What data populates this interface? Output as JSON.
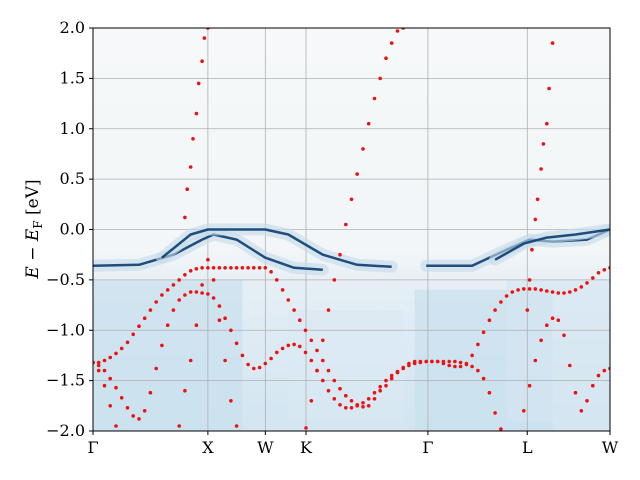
{
  "chart_data": {
    "type": "scatter",
    "title": "",
    "ylabel": {
      "main": "E − E",
      "sub": "F",
      "unit": " [eV]"
    },
    "xlabel": "",
    "ylim": [
      -2.0,
      2.0
    ],
    "yticks": [
      "2.0",
      "1.5",
      "1.0",
      "0.5",
      "0.0",
      "−0.5",
      "−1.0",
      "−1.5",
      "−2.0"
    ],
    "ytick_values": [
      2.0,
      1.5,
      1.0,
      0.5,
      0.0,
      -0.5,
      -1.0,
      -1.5,
      -2.0
    ],
    "kpath_labels": [
      "Γ",
      "X",
      "W",
      "K",
      "Γ",
      "L",
      "W"
    ],
    "kpath_positions": [
      0.0,
      1.0,
      1.5,
      1.854,
      2.915,
      3.78,
      4.5
    ],
    "grid": true,
    "heatmap_colormap": "Blues",
    "background_color": "#f4f7f8",
    "point_color": "#ee1111",
    "band_color": "#0b3d70",
    "series": [
      {
        "x": [
          0.0,
          0.05,
          0.1,
          0.15,
          0.2,
          0.25,
          0.3,
          0.35,
          0.4,
          0.45,
          0.5,
          0.55,
          0.6,
          0.65,
          0.7,
          0.75,
          0.8,
          0.85,
          0.9,
          0.95,
          1.0,
          1.05,
          1.1,
          1.15,
          1.2,
          1.25,
          1.3,
          1.35,
          1.4,
          1.45,
          1.5,
          1.55,
          1.6,
          1.65,
          1.7,
          1.75,
          1.8,
          1.85,
          1.9,
          1.95,
          2.0,
          2.05,
          2.1,
          2.15,
          2.2,
          2.25,
          2.3,
          2.35,
          2.4,
          2.45,
          2.5,
          2.55,
          2.6,
          2.65,
          2.7,
          2.75,
          2.8,
          2.85,
          2.9,
          2.95,
          3.0,
          3.05,
          3.1,
          3.15,
          3.2,
          3.25,
          3.3,
          3.35,
          3.4,
          3.45,
          3.5,
          3.55,
          3.6,
          3.65,
          3.7,
          3.75,
          3.8,
          3.85,
          3.9,
          3.95,
          4.0,
          4.05,
          4.1,
          4.15,
          4.2,
          4.25,
          4.3,
          4.35,
          4.4,
          4.45,
          4.5
        ],
        "y": [
          -1.32,
          -1.32,
          -1.3,
          -1.27,
          -1.23,
          -1.18,
          -1.12,
          -1.04,
          -0.96,
          -0.88,
          -0.8,
          -0.72,
          -0.65,
          -0.6,
          -0.55,
          -0.5,
          -0.45,
          -0.41,
          -0.39,
          -0.38,
          -0.38,
          -0.38,
          -0.38,
          -0.38,
          -0.38,
          -0.38,
          -0.38,
          -0.38,
          -0.38,
          -0.38,
          -0.38,
          -0.42,
          -0.5,
          -0.6,
          -0.7,
          -0.8,
          -0.9,
          -1.0,
          -1.1,
          -1.2,
          -1.3,
          -1.4,
          -1.5,
          -1.58,
          -1.65,
          -1.7,
          -1.74,
          -1.76,
          -1.75,
          -1.68,
          -1.6,
          -1.55,
          -1.48,
          -1.42,
          -1.37,
          -1.33,
          -1.31,
          -1.31,
          -1.31,
          -1.31,
          -1.31,
          -1.33,
          -1.35,
          -1.36,
          -1.36,
          -1.33,
          -1.25,
          -1.14,
          -1.02,
          -0.9,
          -0.8,
          -0.72,
          -0.66,
          -0.62,
          -0.6,
          -0.59,
          -0.59,
          -0.59,
          -0.6,
          -0.61,
          -0.62,
          -0.63,
          -0.63,
          -0.62,
          -0.6,
          -0.57,
          -0.53,
          -0.48,
          -0.43,
          -0.4,
          -0.38
        ]
      },
      {
        "x": [
          0.0,
          0.05,
          0.1,
          0.15,
          0.2,
          0.25,
          0.3,
          0.35,
          0.4,
          0.45,
          0.5,
          0.55,
          0.6,
          0.65,
          0.7,
          0.75,
          0.8,
          0.85,
          0.9,
          0.95,
          1.0,
          1.05,
          1.1,
          1.15,
          1.2,
          1.25,
          1.3,
          1.35,
          1.4,
          1.45,
          1.5,
          1.55,
          1.6,
          1.65,
          1.7,
          1.75,
          1.8,
          1.85,
          1.9,
          1.95,
          2.0,
          2.05,
          2.1,
          2.15,
          2.2,
          2.25,
          2.3,
          2.35,
          2.4,
          2.45,
          2.5,
          2.55,
          2.6,
          2.65,
          2.7,
          2.75,
          2.8,
          2.85,
          2.9,
          2.95,
          3.0,
          3.05,
          3.1,
          3.15,
          3.2,
          3.25,
          3.3,
          3.35,
          3.4,
          3.45,
          3.5,
          3.55,
          3.6,
          3.65,
          3.7,
          3.75,
          3.8,
          3.85,
          3.9,
          3.95,
          4.0,
          4.05,
          4.1,
          4.15,
          4.2,
          4.25,
          4.3,
          4.35,
          4.4,
          4.45,
          4.5
        ],
        "y": [
          -1.32,
          -1.35,
          -1.4,
          -1.48,
          -1.57,
          -1.67,
          -1.77,
          -1.85,
          -1.88,
          -1.8,
          -1.62,
          -1.38,
          -1.15,
          -0.95,
          -0.8,
          -0.7,
          -0.65,
          -0.62,
          -0.62,
          -0.63,
          -0.64,
          -0.68,
          -0.76,
          -0.88,
          -1.0,
          -1.13,
          -1.25,
          -1.34,
          -1.38,
          -1.37,
          -1.33,
          -1.28,
          -1.22,
          -1.18,
          -1.15,
          -1.14,
          -1.16,
          -1.22,
          -1.3,
          -1.4,
          -1.5,
          -1.6,
          -1.68,
          -1.74,
          -1.77,
          -1.77,
          -1.75,
          -1.72,
          -1.68,
          -1.62,
          -1.56,
          -1.5,
          -1.45,
          -1.41,
          -1.38,
          -1.35,
          -1.33,
          -1.32,
          -1.31,
          -1.31,
          -1.31,
          -1.31,
          -1.31,
          -1.31,
          -1.32,
          -1.34,
          -1.36,
          -1.4,
          -1.48,
          -1.62,
          -1.82,
          -1.98,
          null,
          null,
          null,
          -1.8,
          -1.55,
          -1.3,
          -1.1,
          -0.95,
          -0.88,
          -0.9,
          -1.05,
          -1.35,
          -1.62,
          -1.8,
          -1.7,
          -1.55,
          -1.45,
          -1.4,
          -1.38
        ]
      },
      {
        "x": [
          0.0,
          0.05,
          0.1,
          0.15,
          0.2,
          0.25,
          0.3,
          0.35,
          0.4,
          0.45,
          0.5,
          0.55,
          0.6,
          0.65,
          0.7,
          0.75,
          0.8,
          0.85,
          0.9,
          0.95,
          1.0,
          1.05,
          1.1,
          1.15,
          1.2,
          1.25,
          1.3,
          1.35,
          1.4
        ],
        "y": [
          -1.32,
          -1.4,
          -1.55,
          -1.75,
          -1.95,
          null,
          null,
          null,
          null,
          null,
          null,
          null,
          null,
          null,
          null,
          -1.95,
          -1.6,
          -1.3,
          -0.95,
          -0.55,
          -0.3,
          -0.5,
          -0.9,
          -1.3,
          -1.7,
          -1.95,
          null,
          null,
          null
        ]
      },
      {
        "x": [
          0.8,
          0.82,
          0.85,
          0.87,
          0.9,
          0.92,
          0.95,
          0.97,
          1.0
        ],
        "y": [
          0.12,
          0.4,
          0.62,
          0.9,
          1.15,
          1.45,
          1.67,
          1.9,
          2.0
        ]
      },
      {
        "x": [
          1.854,
          1.9,
          1.95,
          2.0,
          2.05,
          2.1,
          2.15,
          2.2,
          2.25,
          2.3,
          2.35,
          2.4,
          2.45,
          2.5,
          2.55,
          2.6,
          2.65,
          2.7
        ],
        "y": [
          -1.97,
          -1.7,
          -1.4,
          -1.1,
          -0.8,
          -0.5,
          -0.25,
          0.05,
          0.3,
          0.55,
          0.8,
          1.05,
          1.3,
          1.5,
          1.7,
          1.85,
          1.97,
          2.0
        ]
      },
      {
        "x": [
          3.78,
          3.8,
          3.82,
          3.85,
          3.87,
          3.9,
          3.92,
          3.95,
          3.97,
          4.0
        ],
        "y": [
          -0.8,
          -0.5,
          -0.2,
          0.1,
          0.3,
          0.6,
          0.85,
          1.05,
          1.4,
          1.85
        ]
      }
    ]
  }
}
